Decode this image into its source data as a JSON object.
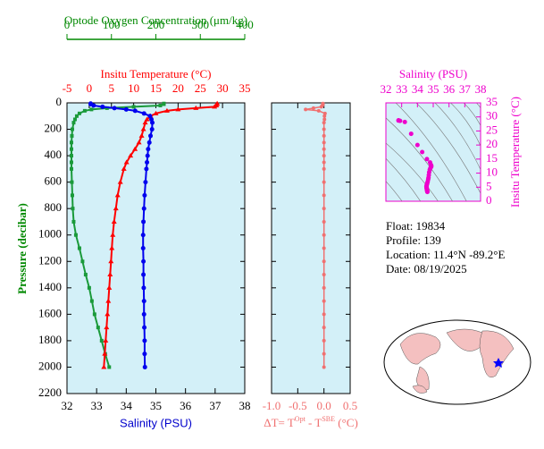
{
  "chart_data": [
    {
      "type": "profile",
      "ylabel": "Pressure (decibar)",
      "ylim": [
        0,
        2200
      ],
      "y_inverted": true,
      "yticks": [
        0,
        200,
        400,
        600,
        800,
        1000,
        1200,
        1400,
        1600,
        1800,
        2000,
        2200
      ],
      "y": [
        5,
        10,
        20,
        30,
        40,
        50,
        60,
        80,
        100,
        125,
        150,
        200,
        250,
        300,
        350,
        400,
        450,
        500,
        600,
        700,
        800,
        900,
        1000,
        1100,
        1200,
        1300,
        1400,
        1500,
        1600,
        1700,
        1800,
        1900,
        2000
      ],
      "axes": [
        {
          "label": "Salinity (PSU)",
          "position": "bottom",
          "color": "#0000cc",
          "xlim": [
            32,
            38
          ],
          "xticks": [
            32,
            33,
            34,
            35,
            36,
            37,
            38
          ]
        },
        {
          "label": "Insitu Temperature (°C)",
          "position": "top",
          "color": "#ff0000",
          "xlim": [
            -5,
            35
          ],
          "xticks": [
            -5,
            0,
            5,
            10,
            15,
            20,
            25,
            30,
            35
          ]
        },
        {
          "label": "Optode Oxygen Concentration (μm/kg)",
          "position": "top2",
          "color": "#008800",
          "xlim": [
            0,
            400
          ],
          "xticks": [
            0,
            100,
            200,
            300,
            400
          ]
        }
      ],
      "series": [
        {
          "axis": 2,
          "color": "#1a9a3a",
          "marker": "square",
          "values": [
            218,
            218,
            210,
            150,
            90,
            55,
            40,
            28,
            22,
            18,
            15,
            12,
            11,
            10,
            10,
            10,
            10,
            10,
            11,
            12,
            13,
            15,
            20,
            28,
            35,
            42,
            50,
            56,
            62,
            70,
            78,
            86,
            95
          ]
        },
        {
          "axis": 1,
          "color": "#ff0000",
          "marker": "triangle",
          "values": [
            28.8,
            28.7,
            28.6,
            28.2,
            24,
            20,
            17.5,
            15,
            13.8,
            13,
            12.6,
            12.2,
            11.8,
            11.2,
            10.3,
            9.3,
            8.4,
            7.8,
            7,
            6.4,
            6,
            5.6,
            5.3,
            5.1,
            4.9,
            4.7,
            4.5,
            4.3,
            4.1,
            3.9,
            3.7,
            3.5,
            3.3
          ]
        },
        {
          "axis": 0,
          "color": "#0000ee",
          "marker": "circle",
          "values": [
            32.8,
            32.8,
            32.9,
            33.2,
            33.6,
            34.0,
            34.3,
            34.6,
            34.8,
            34.85,
            34.88,
            34.87,
            34.82,
            34.78,
            34.74,
            34.72,
            34.7,
            34.68,
            34.65,
            34.62,
            34.6,
            34.58,
            34.57,
            34.57,
            34.58,
            34.58,
            34.59,
            34.6,
            34.6,
            34.61,
            34.62,
            34.62,
            34.63
          ]
        }
      ]
    },
    {
      "type": "delta",
      "color": "#f07070",
      "xlabel_parts": [
        "ΔT= T",
        "Opt",
        " - T",
        "SBE",
        " (°C)"
      ],
      "xlim": [
        -1,
        0.5
      ],
      "xticks": [
        {
          "value": -1,
          "label": "-1.0"
        },
        -0.5,
        {
          "value": 0,
          "label": "0.0"
        },
        0.5
      ],
      "values": [
        -0.02,
        -0.02,
        -0.03,
        -0.05,
        -0.2,
        -0.35,
        -0.1,
        0.02,
        0.01,
        0.01,
        0,
        0,
        0,
        0,
        0,
        0,
        0,
        0,
        0,
        0,
        0,
        0,
        0,
        0,
        0,
        0,
        0,
        0,
        0,
        0,
        0,
        0,
        0
      ]
    },
    {
      "type": "ts",
      "color": "#ee00cc",
      "xlabel": "Salinity (PSU)",
      "xlim": [
        32,
        38
      ],
      "xticks": [
        32,
        33,
        34,
        35,
        36,
        37,
        38
      ],
      "ylabel": "Insitu Temperature (°C)",
      "ylim": [
        0,
        35
      ],
      "yticks": [
        0,
        5,
        10,
        15,
        20,
        25,
        30,
        35
      ]
    }
  ],
  "info": [
    "Float:  19834",
    "Profile:  139",
    "Location:  11.4°N  -89.2°E",
    "Date:  08/19/2025"
  ]
}
